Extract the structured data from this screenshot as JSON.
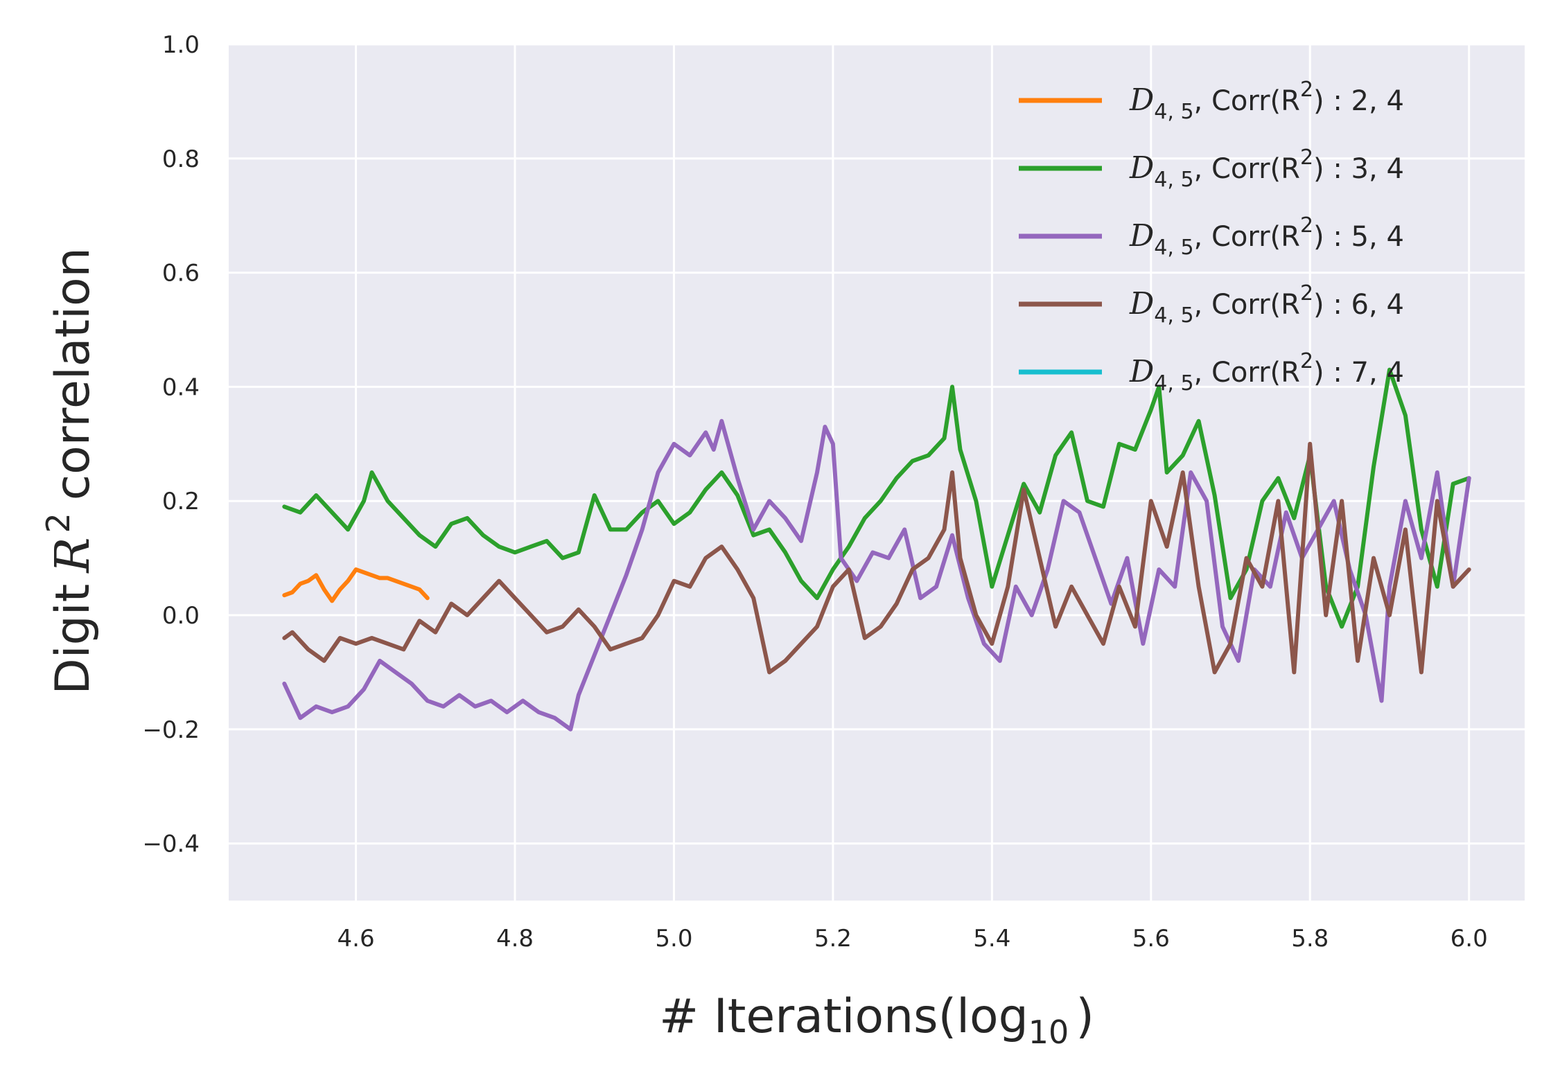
{
  "chart_data": {
    "type": "line",
    "title": "",
    "xlabel": "# Iterations(log",
    "xlabel_sub": "10",
    "xlabel_close": ")",
    "ylabel": "Digit",
    "ylabel_var": "R",
    "ylabel_sup": "2",
    "ylabel_rest": "correlation",
    "xlim": [
      4.44,
      6.07
    ],
    "ylim": [
      -0.5,
      1.0
    ],
    "xticks": [
      "4.6",
      "4.8",
      "5.0",
      "5.2",
      "5.4",
      "5.6",
      "5.8",
      "6.0"
    ],
    "xtick_values": [
      4.6,
      4.8,
      5.0,
      5.2,
      5.4,
      5.6,
      5.8,
      6.0
    ],
    "yticks": [
      "−0.4",
      "−0.2",
      "0.0",
      "0.2",
      "0.4",
      "0.6",
      "0.8",
      "1.0"
    ],
    "ytick_values": [
      -0.4,
      -0.2,
      0.0,
      0.2,
      0.4,
      0.6,
      0.8,
      1.0
    ],
    "grid": true,
    "legend_position": "top-right",
    "background": "#eaeaf2",
    "series": [
      {
        "name": "𝒟4,5, Corr(R2) : 2, 4",
        "label_prefix": "D",
        "label_sub": "4, 5",
        "label_mid": ", Corr(R",
        "label_sup": "2",
        "label_end": ") : 2, 4",
        "color": "#ff7f0e",
        "x": [
          4.51,
          4.52,
          4.53,
          4.54,
          4.55,
          4.56,
          4.57,
          4.58,
          4.59,
          4.6,
          4.61,
          4.62,
          4.63,
          4.64,
          4.65,
          4.66,
          4.67,
          4.68,
          4.69
        ],
        "y": [
          0.035,
          0.04,
          0.055,
          0.06,
          0.07,
          0.045,
          0.025,
          0.045,
          0.06,
          0.08,
          0.075,
          0.07,
          0.065,
          0.065,
          0.06,
          0.055,
          0.05,
          0.045,
          0.03
        ]
      },
      {
        "name": "𝒟4,5, Corr(R2) : 3, 4",
        "label_prefix": "D",
        "label_sub": "4, 5",
        "label_mid": ", Corr(R",
        "label_sup": "2",
        "label_end": ") : 3, 4",
        "color": "#2ca02c",
        "x": [
          4.51,
          4.53,
          4.55,
          4.57,
          4.59,
          4.61,
          4.62,
          4.64,
          4.66,
          4.68,
          4.7,
          4.72,
          4.74,
          4.76,
          4.78,
          4.8,
          4.82,
          4.84,
          4.86,
          4.88,
          4.9,
          4.92,
          4.94,
          4.96,
          4.98,
          5.0,
          5.02,
          5.04,
          5.06,
          5.08,
          5.1,
          5.12,
          5.14,
          5.16,
          5.18,
          5.2,
          5.22,
          5.24,
          5.26,
          5.28,
          5.3,
          5.32,
          5.34,
          5.35,
          5.36,
          5.38,
          5.4,
          5.42,
          5.44,
          5.46,
          5.48,
          5.5,
          5.52,
          5.54,
          5.56,
          5.58,
          5.6,
          5.61,
          5.62,
          5.64,
          5.66,
          5.68,
          5.7,
          5.72,
          5.74,
          5.76,
          5.78,
          5.8,
          5.82,
          5.84,
          5.86,
          5.88,
          5.9,
          5.92,
          5.94,
          5.96,
          5.98,
          6.0
        ],
        "y": [
          0.19,
          0.18,
          0.21,
          0.18,
          0.15,
          0.2,
          0.25,
          0.2,
          0.17,
          0.14,
          0.12,
          0.16,
          0.17,
          0.14,
          0.12,
          0.11,
          0.12,
          0.13,
          0.1,
          0.11,
          0.21,
          0.15,
          0.15,
          0.18,
          0.2,
          0.16,
          0.18,
          0.22,
          0.25,
          0.21,
          0.14,
          0.15,
          0.11,
          0.06,
          0.03,
          0.08,
          0.12,
          0.17,
          0.2,
          0.24,
          0.27,
          0.28,
          0.31,
          0.4,
          0.29,
          0.2,
          0.05,
          0.14,
          0.23,
          0.18,
          0.28,
          0.32,
          0.2,
          0.19,
          0.3,
          0.29,
          0.36,
          0.4,
          0.25,
          0.28,
          0.34,
          0.21,
          0.03,
          0.08,
          0.2,
          0.24,
          0.17,
          0.28,
          0.05,
          -0.02,
          0.05,
          0.26,
          0.43,
          0.35,
          0.15,
          0.05,
          0.23,
          0.24
        ]
      },
      {
        "name": "𝒟4,5, Corr(R2) : 5, 4",
        "label_prefix": "D",
        "label_sub": "4, 5",
        "label_mid": ", Corr(R",
        "label_sup": "2",
        "label_end": ") : 5, 4",
        "color": "#9467bd",
        "x": [
          4.51,
          4.52,
          4.53,
          4.54,
          4.55,
          4.57,
          4.59,
          4.61,
          4.63,
          4.65,
          4.67,
          4.69,
          4.71,
          4.73,
          4.75,
          4.77,
          4.79,
          4.81,
          4.83,
          4.85,
          4.87,
          4.88,
          4.9,
          4.92,
          4.94,
          4.96,
          4.98,
          5.0,
          5.02,
          5.04,
          5.05,
          5.06,
          5.08,
          5.1,
          5.12,
          5.14,
          5.16,
          5.18,
          5.19,
          5.2,
          5.21,
          5.23,
          5.25,
          5.27,
          5.29,
          5.31,
          5.33,
          5.35,
          5.37,
          5.39,
          5.41,
          5.43,
          5.45,
          5.47,
          5.49,
          5.51,
          5.53,
          5.55,
          5.57,
          5.59,
          5.61,
          5.63,
          5.65,
          5.67,
          5.69,
          5.71,
          5.73,
          5.75,
          5.77,
          5.79,
          5.81,
          5.83,
          5.85,
          5.87,
          5.89,
          5.9,
          5.92,
          5.94,
          5.96,
          5.98,
          6.0
        ],
        "y": [
          -0.12,
          -0.15,
          -0.18,
          -0.17,
          -0.16,
          -0.17,
          -0.16,
          -0.13,
          -0.08,
          -0.1,
          -0.12,
          -0.15,
          -0.16,
          -0.14,
          -0.16,
          -0.15,
          -0.17,
          -0.15,
          -0.17,
          -0.18,
          -0.2,
          -0.14,
          -0.07,
          0.0,
          0.07,
          0.15,
          0.25,
          0.3,
          0.28,
          0.32,
          0.29,
          0.34,
          0.24,
          0.15,
          0.2,
          0.17,
          0.13,
          0.25,
          0.33,
          0.3,
          0.1,
          0.06,
          0.11,
          0.1,
          0.15,
          0.03,
          0.05,
          0.14,
          0.03,
          -0.05,
          -0.08,
          0.05,
          0.0,
          0.08,
          0.2,
          0.18,
          0.1,
          0.02,
          0.1,
          -0.05,
          0.08,
          0.05,
          0.25,
          0.2,
          -0.02,
          -0.08,
          0.08,
          0.05,
          0.18,
          0.1,
          0.15,
          0.2,
          0.08,
          0.0,
          -0.15,
          0.05,
          0.2,
          0.1,
          0.25,
          0.05,
          0.24
        ]
      },
      {
        "name": "𝒟4,5, Corr(R2) : 6, 4",
        "label_prefix": "D",
        "label_sub": "4, 5",
        "label_mid": ", Corr(R",
        "label_sup": "2",
        "label_end": ") : 6, 4",
        "color": "#8c564b",
        "x": [
          4.51,
          4.52,
          4.54,
          4.56,
          4.58,
          4.6,
          4.62,
          4.64,
          4.66,
          4.68,
          4.7,
          4.72,
          4.74,
          4.76,
          4.78,
          4.8,
          4.82,
          4.84,
          4.86,
          4.88,
          4.9,
          4.92,
          4.94,
          4.96,
          4.98,
          5.0,
          5.02,
          5.04,
          5.06,
          5.08,
          5.1,
          5.12,
          5.14,
          5.16,
          5.18,
          5.2,
          5.22,
          5.24,
          5.26,
          5.28,
          5.3,
          5.32,
          5.34,
          5.35,
          5.36,
          5.38,
          5.4,
          5.42,
          5.44,
          5.46,
          5.48,
          5.5,
          5.52,
          5.54,
          5.56,
          5.58,
          5.6,
          5.62,
          5.64,
          5.66,
          5.68,
          5.7,
          5.72,
          5.74,
          5.76,
          5.78,
          5.8,
          5.82,
          5.84,
          5.86,
          5.88,
          5.9,
          5.92,
          5.94,
          5.96,
          5.98,
          6.0
        ],
        "y": [
          -0.04,
          -0.03,
          -0.06,
          -0.08,
          -0.04,
          -0.05,
          -0.04,
          -0.05,
          -0.06,
          -0.01,
          -0.03,
          0.02,
          0.0,
          0.03,
          0.06,
          0.03,
          0.0,
          -0.03,
          -0.02,
          0.01,
          -0.02,
          -0.06,
          -0.05,
          -0.04,
          0.0,
          0.06,
          0.05,
          0.1,
          0.12,
          0.08,
          0.03,
          -0.1,
          -0.08,
          -0.05,
          -0.02,
          0.05,
          0.08,
          -0.04,
          -0.02,
          0.02,
          0.08,
          0.1,
          0.15,
          0.25,
          0.1,
          0.0,
          -0.05,
          0.05,
          0.22,
          0.1,
          -0.02,
          0.05,
          0.0,
          -0.05,
          0.05,
          -0.02,
          0.2,
          0.12,
          0.25,
          0.05,
          -0.1,
          -0.05,
          0.1,
          0.05,
          0.2,
          -0.1,
          0.3,
          0.0,
          0.2,
          -0.08,
          0.1,
          0.0,
          0.15,
          -0.1,
          0.2,
          0.05,
          0.08
        ]
      },
      {
        "name": "𝒟4,5, Corr(R2) : 7, 4",
        "label_prefix": "D",
        "label_sub": "4, 5",
        "label_mid": ", Corr(R",
        "label_sup": "2",
        "label_end": ") : 7, 4",
        "color": "#17becf",
        "x": [],
        "y": []
      }
    ]
  }
}
